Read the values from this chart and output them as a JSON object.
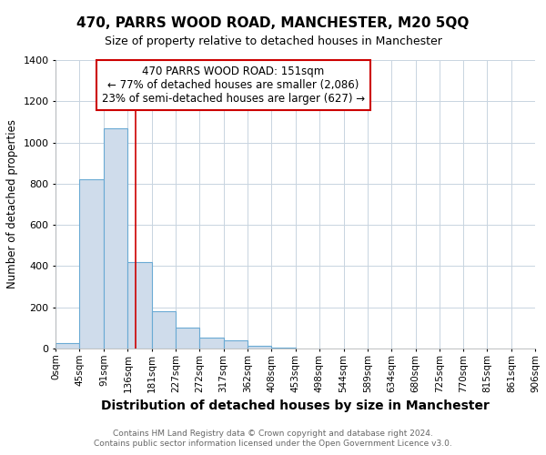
{
  "title": "470, PARRS WOOD ROAD, MANCHESTER, M20 5QQ",
  "subtitle": "Size of property relative to detached houses in Manchester",
  "xlabel": "Distribution of detached houses by size in Manchester",
  "ylabel": "Number of detached properties",
  "footnote1": "Contains HM Land Registry data © Crown copyright and database right 2024.",
  "footnote2": "Contains public sector information licensed under the Open Government Licence v3.0.",
  "annotation_line1": "470 PARRS WOOD ROAD: 151sqm",
  "annotation_line2": "← 77% of detached houses are smaller (2,086)",
  "annotation_line3": "23% of semi-detached houses are larger (627) →",
  "bar_edges": [
    0,
    45,
    91,
    136,
    181,
    227,
    272,
    317,
    362,
    408,
    453,
    498,
    544,
    589,
    634,
    680,
    725,
    770,
    815,
    861,
    906
  ],
  "bar_heights": [
    25,
    820,
    1070,
    420,
    180,
    100,
    55,
    40,
    15,
    5,
    2,
    0,
    0,
    0,
    0,
    0,
    0,
    0,
    0,
    0
  ],
  "bar_color": "#cfdceb",
  "bar_edge_color": "#6aaad4",
  "vline_x": 151,
  "vline_color": "#cc0000",
  "grid_color": "#c8d4e0",
  "background_color": "#ffffff",
  "annotation_box_facecolor": "#ffffff",
  "annotation_box_edgecolor": "#cc0000",
  "ylim": [
    0,
    1400
  ],
  "yticks": [
    0,
    200,
    400,
    600,
    800,
    1000,
    1200,
    1400
  ],
  "tick_labels": [
    "0sqm",
    "45sqm",
    "91sqm",
    "136sqm",
    "181sqm",
    "227sqm",
    "272sqm",
    "317sqm",
    "362sqm",
    "408sqm",
    "453sqm",
    "498sqm",
    "544sqm",
    "589sqm",
    "634sqm",
    "680sqm",
    "725sqm",
    "770sqm",
    "815sqm",
    "861sqm",
    "906sqm"
  ],
  "title_fontsize": 11,
  "subtitle_fontsize": 9,
  "xlabel_fontsize": 10,
  "ylabel_fontsize": 8.5,
  "tick_fontsize": 7.5,
  "annotation_fontsize": 8.5,
  "footnote_fontsize": 6.5,
  "footnote_color": "#666666"
}
